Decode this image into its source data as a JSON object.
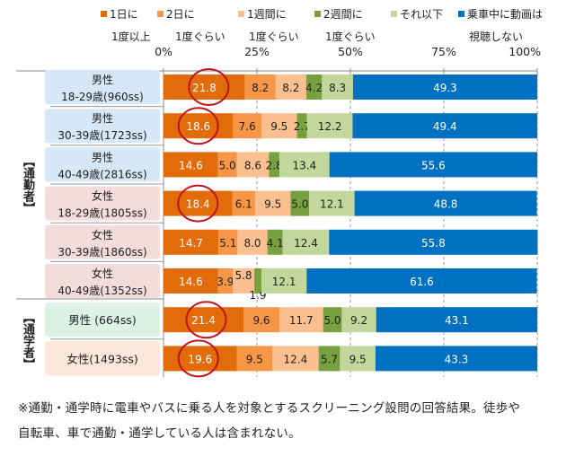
{
  "chart_data": {
    "type": "bar",
    "orientation": "horizontal",
    "stacked": true,
    "xlim": [
      0,
      100
    ],
    "xticks": [
      "0%",
      "25%",
      "50%",
      "75%",
      "100%"
    ],
    "grid": "vertical dashed",
    "legend_position": "top",
    "series": [
      {
        "name": "1日に1度以上",
        "color": "#E26B0A",
        "values": [
          21.8,
          18.6,
          14.6,
          18.4,
          14.7,
          14.6,
          21.4,
          19.6
        ]
      },
      {
        "name": "2日に1度ぐらい",
        "color": "#F79646",
        "values": [
          8.2,
          7.6,
          5.0,
          6.1,
          5.1,
          3.9,
          9.6,
          9.5
        ]
      },
      {
        "name": "1週間に1度ぐらい",
        "color": "#FAC090",
        "values": [
          8.2,
          9.5,
          8.6,
          9.5,
          8.0,
          5.8,
          11.7,
          12.4
        ]
      },
      {
        "name": "2週間に1度ぐらい",
        "color": "#77A03F",
        "values": [
          4.2,
          2.7,
          2.8,
          5.0,
          4.1,
          1.9,
          5.0,
          5.7
        ]
      },
      {
        "name": "それ以下",
        "color": "#C3D69B",
        "values": [
          8.3,
          12.2,
          13.4,
          12.1,
          12.4,
          12.1,
          9.2,
          9.5
        ]
      },
      {
        "name": "乗車中に動画は視聴しない",
        "color": "#0070C0",
        "values": [
          49.3,
          49.4,
          55.6,
          48.8,
          55.8,
          61.6,
          43.1,
          43.3
        ]
      }
    ],
    "legend_lines": [
      [
        "1日に",
        "1度以上"
      ],
      [
        "2日に",
        "1度ぐらい"
      ],
      [
        "1週間に",
        "1度ぐらい"
      ],
      [
        "2週間に",
        "1度ぐらい"
      ],
      [
        "それ以下",
        ""
      ],
      [
        "乗車中に動画は",
        "視聴しない"
      ]
    ],
    "categories": [
      {
        "line1": "男性",
        "line2": "18-29歳(960ss)",
        "bg": "#D6E7F5"
      },
      {
        "line1": "男性",
        "line2": "30-39歳(1723ss)",
        "bg": "#D6E7F5"
      },
      {
        "line1": "男性",
        "line2": "40-49歳(2816ss)",
        "bg": "#D6E7F5"
      },
      {
        "line1": "女性",
        "line2": "18-29歳(1805ss)",
        "bg": "#F3DCDC"
      },
      {
        "line1": "女性",
        "line2": "30-39歳(1860ss)",
        "bg": "#F3DCDC"
      },
      {
        "line1": "女性",
        "line2": "40-49歳(1352ss)",
        "bg": "#F3DCDC"
      },
      {
        "line1": "男性 (664ss)",
        "line2": "",
        "bg": "#DDF2E6"
      },
      {
        "line1": "女性(1493ss)",
        "line2": "",
        "bg": "#FBE7DA"
      }
    ],
    "groups": [
      {
        "label": "【通勤者】",
        "rows": [
          0,
          5
        ]
      },
      {
        "label": "【通学者】",
        "rows": [
          6,
          7
        ]
      }
    ],
    "highlighted_rows": [
      0,
      1,
      3,
      6,
      7
    ],
    "highlight_color": "#C0141C"
  },
  "footnote": {
    "line1": "※通勤・通学時に電車やバスに乗る人を対象とするスクリーニング設問の回答結果。徒歩や",
    "line2": "自転車、車で通勤・通学している人は含まれない。"
  }
}
